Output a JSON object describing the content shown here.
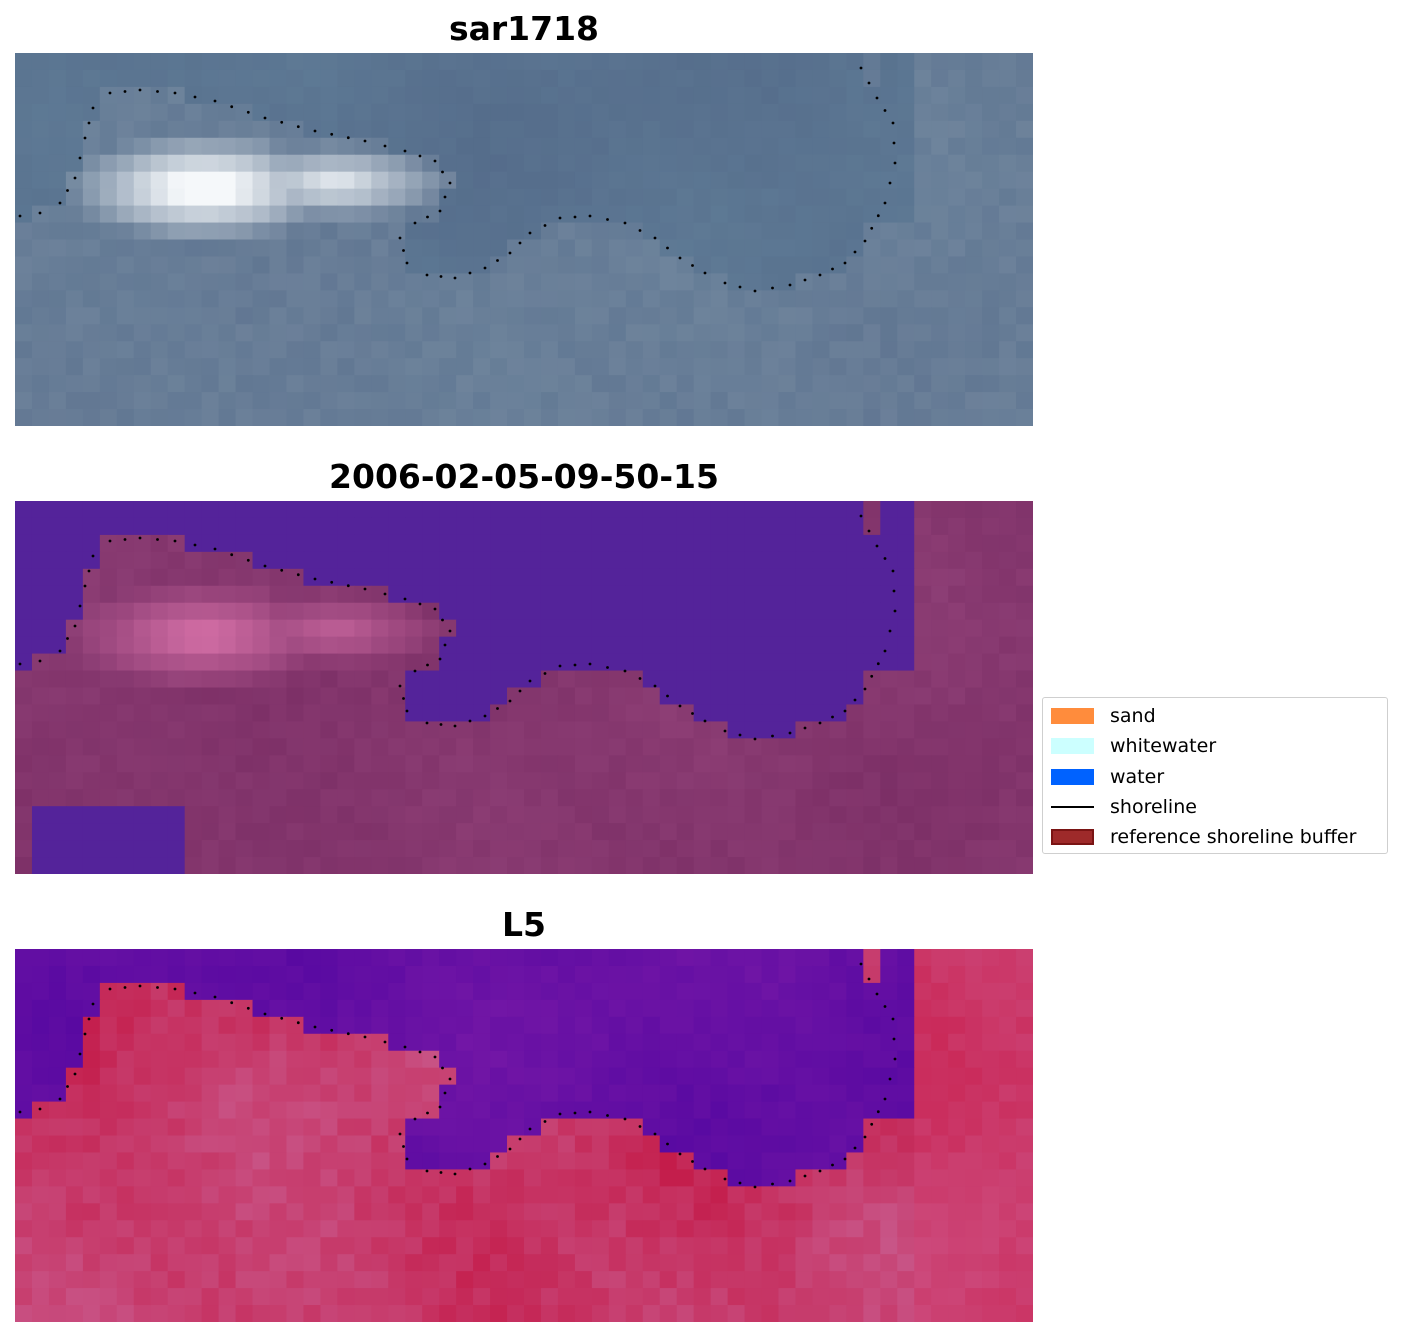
{
  "panels": [
    {
      "title": "sar1718",
      "style": "rgb"
    },
    {
      "title": "2006-02-05-09-50-15",
      "style": "classified"
    },
    {
      "title": "L5",
      "style": "index"
    }
  ],
  "legend": {
    "items": [
      {
        "label": "sand",
        "type": "patch",
        "color": "#ff8c3c"
      },
      {
        "label": "whitewater",
        "type": "patch",
        "color": "#ccffff"
      },
      {
        "label": "water",
        "type": "patch",
        "color": "#0062ff"
      },
      {
        "label": "shoreline",
        "type": "line",
        "color": "#000000"
      },
      {
        "label": "reference shoreline buffer",
        "type": "patch",
        "color": "#9e2a2a",
        "edge": "#7a1414"
      }
    ]
  },
  "colors": {
    "water_class": "#54239a",
    "land_tint": "#7e3168",
    "index_low": "#5b0aa5",
    "index_high": "#c4103f"
  }
}
